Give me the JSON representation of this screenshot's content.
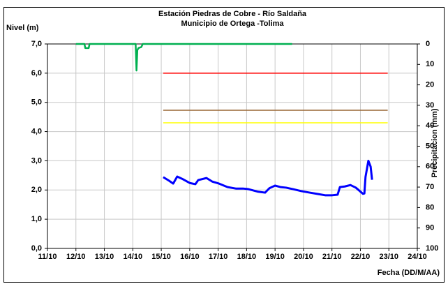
{
  "chart_data": {
    "type": "line",
    "title": "Estación Piedras de Cobre  - Río Saldaña",
    "subtitle": "Municipio de Ortega -Tolima",
    "ylabel": "Nivel (m)",
    "y2label": "Precipitacion (mm)",
    "xlabel": "Fecha (DD/M/AA)",
    "xlim": [
      11,
      24
    ],
    "xticks": [
      {
        "value": 11,
        "label": "11/10"
      },
      {
        "value": 12,
        "label": "12/10"
      },
      {
        "value": 13,
        "label": "13/10"
      },
      {
        "value": 14,
        "label": "14/10"
      },
      {
        "value": 15,
        "label": "15/10"
      },
      {
        "value": 16,
        "label": "16/10"
      },
      {
        "value": 17,
        "label": "17/10"
      },
      {
        "value": 18,
        "label": "18/10"
      },
      {
        "value": 19,
        "label": "19/10"
      },
      {
        "value": 20,
        "label": "20/10"
      },
      {
        "value": 21,
        "label": "21/10"
      },
      {
        "value": 22,
        "label": "22/10"
      },
      {
        "value": 23,
        "label": "23/10"
      },
      {
        "value": 24,
        "label": "24/10"
      }
    ],
    "ylim": [
      0,
      7
    ],
    "yticks": [
      {
        "value": 0,
        "label": "0,0"
      },
      {
        "value": 1,
        "label": "1,0"
      },
      {
        "value": 2,
        "label": "2,0"
      },
      {
        "value": 3,
        "label": "3,0"
      },
      {
        "value": 4,
        "label": "4,0"
      },
      {
        "value": 5,
        "label": "5,0"
      },
      {
        "value": 6,
        "label": "6,0"
      },
      {
        "value": 7,
        "label": "7,0"
      }
    ],
    "y2lim": [
      100,
      0
    ],
    "y2ticks": [
      0,
      10,
      20,
      30,
      40,
      50,
      60,
      70,
      80,
      90,
      100
    ],
    "grid": true,
    "series": [
      {
        "color": "#ff0000",
        "width": 1.5,
        "x": [
          15.07,
          22.96
        ],
        "values": [
          6.0,
          6.0
        ]
      },
      {
        "color": "#996633",
        "width": 1.5,
        "x": [
          15.07,
          22.96
        ],
        "values": [
          4.73,
          4.73
        ]
      },
      {
        "color": "#ffff00",
        "width": 1.5,
        "x": [
          15.07,
          22.96
        ],
        "values": [
          4.3,
          4.3
        ]
      },
      {
        "color": "#00b050",
        "width": 2.5,
        "axis": "y2",
        "x": [
          12.0,
          12.3,
          12.33,
          12.45,
          12.48,
          14.1,
          14.13,
          14.16,
          14.2,
          14.3,
          14.35,
          19.6
        ],
        "values": [
          0,
          0,
          2,
          2,
          0,
          0,
          13,
          3,
          2,
          1.5,
          0,
          0
        ]
      },
      {
        "color": "#0000ff",
        "width": 3,
        "x": [
          15.07,
          15.27,
          15.42,
          15.56,
          15.76,
          16.0,
          16.2,
          16.3,
          16.59,
          16.79,
          17.03,
          17.33,
          17.62,
          17.87,
          18.06,
          18.41,
          18.65,
          18.8,
          19.0,
          19.19,
          19.39,
          19.63,
          19.93,
          20.22,
          20.52,
          20.76,
          21.01,
          21.2,
          21.28,
          21.45,
          21.65,
          21.84,
          22.09,
          22.14,
          22.18,
          22.28,
          22.36,
          22.41
        ],
        "values": [
          2.44,
          2.32,
          2.22,
          2.46,
          2.37,
          2.24,
          2.2,
          2.34,
          2.41,
          2.29,
          2.22,
          2.1,
          2.05,
          2.05,
          2.03,
          1.94,
          1.91,
          2.06,
          2.15,
          2.1,
          2.08,
          2.03,
          1.96,
          1.91,
          1.86,
          1.82,
          1.82,
          1.84,
          2.1,
          2.12,
          2.17,
          2.08,
          1.87,
          1.88,
          2.45,
          3.0,
          2.8,
          2.35
        ]
      }
    ]
  }
}
